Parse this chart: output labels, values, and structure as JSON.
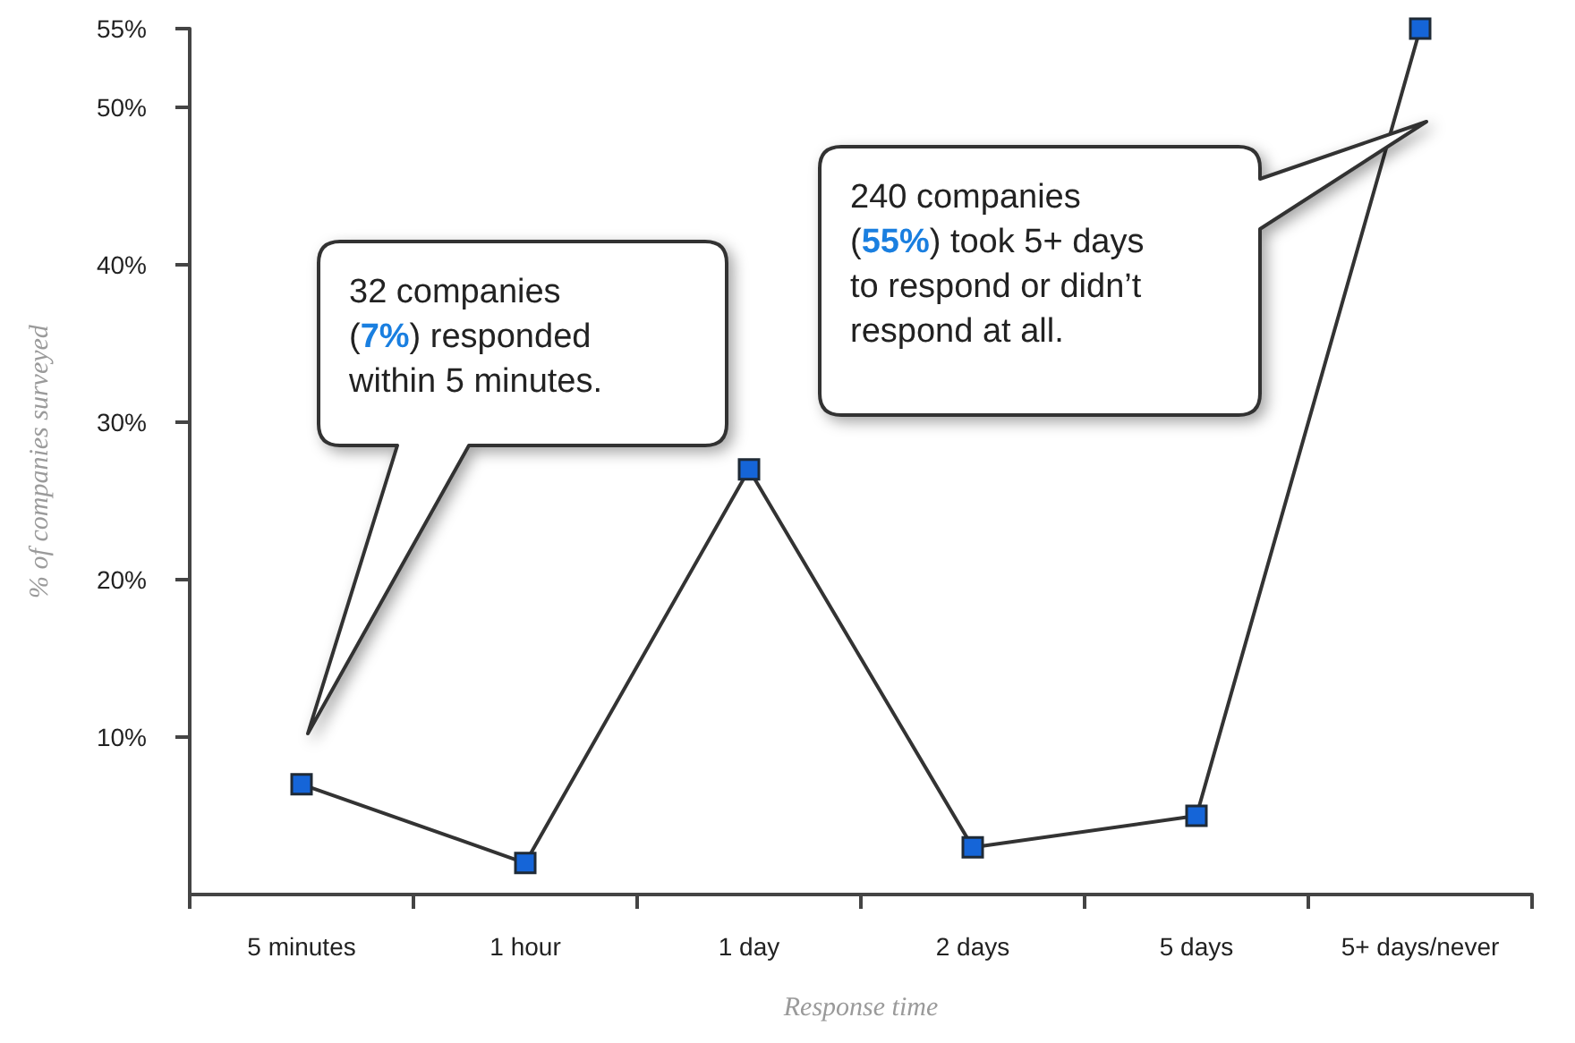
{
  "chart_data": {
    "type": "line",
    "xlabel": "Response time",
    "ylabel": "% of companies surveyed",
    "categories": [
      "5 minutes",
      "1 hour",
      "1 day",
      "2 days",
      "5 days",
      "5+ days/never"
    ],
    "series": [
      {
        "color": "#1565d8",
        "values": [
          7,
          2,
          27,
          3,
          5,
          55
        ]
      }
    ],
    "ylim": [
      0,
      55
    ],
    "yticks": [
      {
        "value": 10,
        "label": "10%"
      },
      {
        "value": 20,
        "label": "20%"
      },
      {
        "value": 30,
        "label": "30%"
      },
      {
        "value": 40,
        "label": "40%"
      },
      {
        "value": 50,
        "label": "50%"
      },
      {
        "value": 55,
        "label": "55%"
      }
    ],
    "grid": false,
    "marker": "square",
    "line_style": "solid",
    "annotations": [
      "32 companies (7%) responded within 5 minutes.",
      "240 companies (55%) took 5+ days to respond or didn’t respond at all."
    ]
  }
}
